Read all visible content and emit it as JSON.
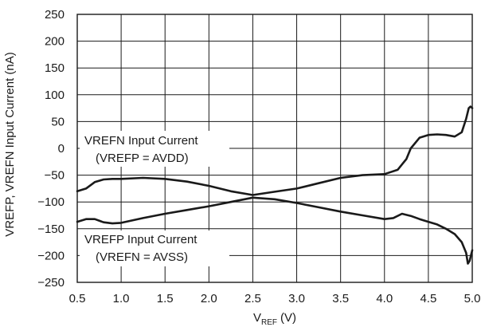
{
  "chart_data": {
    "type": "line",
    "ylabel": "VREFP, VREFN Input Current (nA)",
    "xlabel": {
      "main": "V",
      "sub": "REF",
      "unit": "(V)"
    },
    "xlim": [
      0.5,
      5.0
    ],
    "ylim": [
      -250,
      250
    ],
    "xticks": [
      0.5,
      1.0,
      1.5,
      2.0,
      2.5,
      3.0,
      3.5,
      4.0,
      4.5,
      5.0
    ],
    "xtick_labels": [
      "0.5",
      "1.0",
      "1.5",
      "2.0",
      "2.5",
      "3.0",
      "3.5",
      "4.0",
      "4.5",
      "5.0"
    ],
    "yticks": [
      250,
      200,
      150,
      100,
      50,
      0,
      -50,
      -100,
      -150,
      -200,
      -250
    ],
    "ytick_labels": [
      "250",
      "200",
      "150",
      "100",
      "50",
      "0",
      "−50",
      "−100",
      "−150",
      "−200",
      "−250"
    ],
    "grid": true,
    "legend": "none",
    "line_color": "#1a1a1a",
    "series": [
      {
        "x": [
          0.5,
          0.6,
          0.7,
          0.8,
          0.9,
          1.0,
          1.25,
          1.5,
          1.75,
          2.0,
          2.25,
          2.5,
          2.75,
          3.0,
          3.25,
          3.5,
          3.75,
          4.0,
          4.15,
          4.25,
          4.3,
          4.4,
          4.5,
          4.6,
          4.7,
          4.8,
          4.88,
          4.93,
          4.96,
          4.98,
          5.0
        ],
        "y": [
          -80,
          -75,
          -63,
          -58,
          -57,
          -57,
          -55,
          -57,
          -62,
          -70,
          -80,
          -87,
          -81,
          -75,
          -65,
          -55,
          -50,
          -48,
          -40,
          -20,
          0,
          20,
          25,
          26,
          25,
          22,
          30,
          55,
          75,
          78,
          75
        ]
      },
      {
        "x": [
          0.5,
          0.6,
          0.7,
          0.8,
          0.9,
          1.0,
          1.25,
          1.5,
          1.75,
          2.0,
          2.25,
          2.5,
          2.75,
          3.0,
          3.25,
          3.5,
          3.75,
          4.0,
          4.1,
          4.2,
          4.3,
          4.4,
          4.5,
          4.6,
          4.7,
          4.8,
          4.88,
          4.93,
          4.95,
          4.97,
          5.0
        ],
        "y": [
          -137,
          -132,
          -132,
          -138,
          -140,
          -139,
          -130,
          -122,
          -115,
          -108,
          -100,
          -92,
          -95,
          -102,
          -110,
          -118,
          -125,
          -132,
          -130,
          -122,
          -126,
          -132,
          -137,
          -142,
          -150,
          -160,
          -175,
          -195,
          -215,
          -210,
          -190
        ]
      }
    ],
    "annotations": [
      {
        "lines": [
          "VREFN Input Current",
          "(VREFP = AVDD)"
        ]
      },
      {
        "lines": [
          "VREFP Input Current",
          "(VREFN = AVSS)"
        ]
      }
    ]
  }
}
